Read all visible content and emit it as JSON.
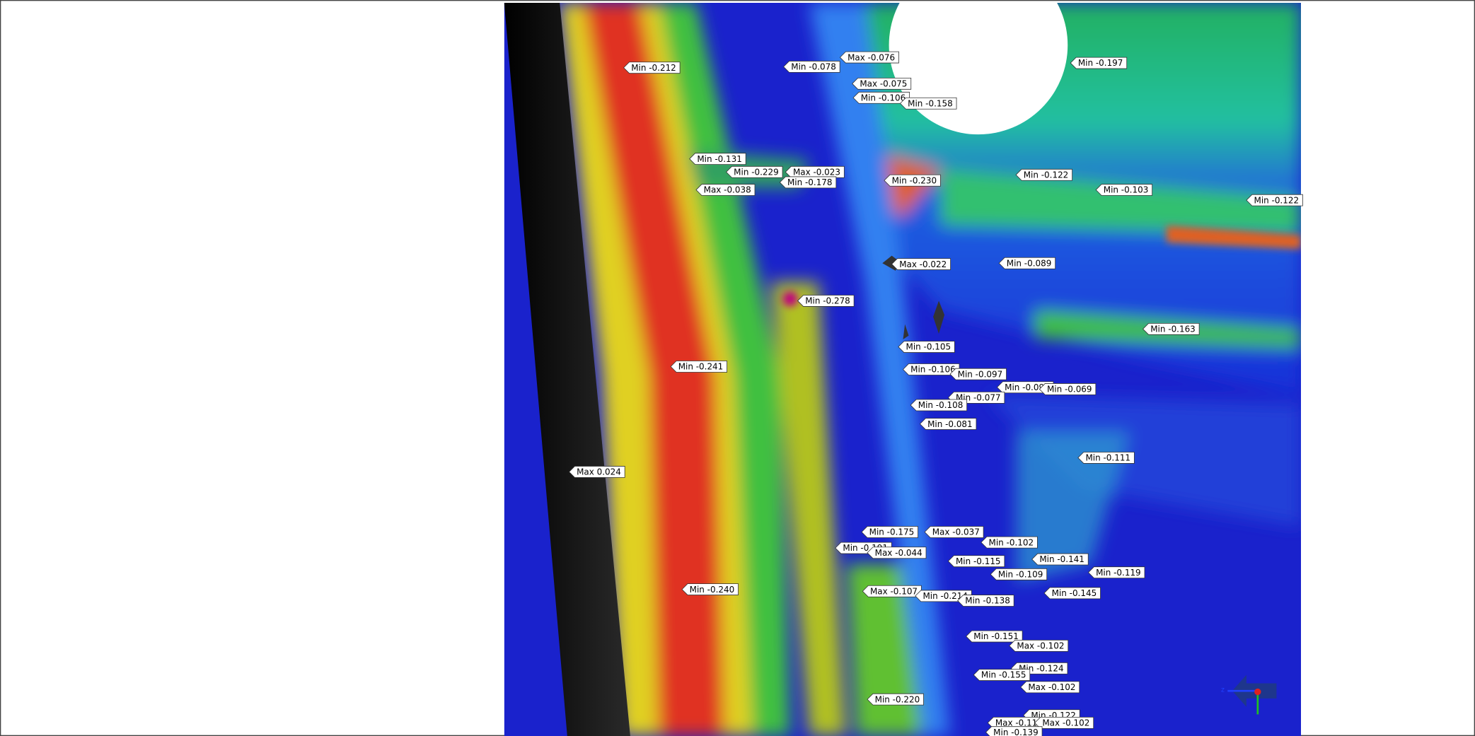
{
  "labels": [
    "Min -0.212",
    "Min -0.078",
    "Max -0.076",
    "Min -0.197",
    "Max -0.075",
    "Min -0.106",
    "Min -0.158",
    "Min -0.131",
    "Min -0.229",
    "Max -0.023",
    "Min -0.178",
    "Max -0.038",
    "Min -0.230",
    "Min -0.122",
    "Min -0.103",
    "Min -0.122",
    "Max -0.022",
    "Min -0.089",
    "Min -0.278",
    "Min -0.163",
    "Min -0.241",
    "Min -0.105",
    "Min -0.106",
    "Min -0.097",
    "Min -0.099",
    "Min -0.069",
    "Min -0.077",
    "Min -0.108",
    "Min -0.081",
    "Max 0.024",
    "Min -0.111",
    "Min -0.175",
    "Max -0.037",
    "Min -0.102",
    "Min -0.191",
    "Max -0.044",
    "Min -0.115",
    "Min -0.141",
    "Min -0.109",
    "Min -0.119",
    "Min -0.240",
    "Max -0.107",
    "Min -0.214",
    "Min -0.138",
    "Min -0.145",
    "Min -0.151",
    "Max -0.102",
    "Min -0.124",
    "Min -0.155",
    "Max -0.102",
    "Min -0.220",
    "Min -0.122",
    "Max -0.110",
    "Max -0.102",
    "Min -0.139"
  ]
}
